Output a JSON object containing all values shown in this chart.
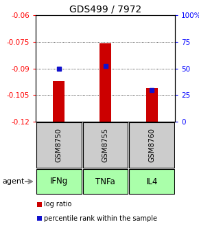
{
  "title": "GDS499 / 7972",
  "categories": [
    "IFNg",
    "TNFa",
    "IL4"
  ],
  "sample_labels": [
    "GSM8750",
    "GSM8755",
    "GSM8760"
  ],
  "log_ratios": [
    -0.097,
    -0.076,
    -0.101
  ],
  "percentile_ranks": [
    50,
    52,
    30
  ],
  "ylim_left": [
    -0.12,
    -0.06
  ],
  "ylim_right": [
    0,
    100
  ],
  "yticks_left": [
    -0.12,
    -0.105,
    -0.09,
    -0.075,
    -0.06
  ],
  "yticks_right": [
    0,
    25,
    50,
    75,
    100
  ],
  "bar_color": "#cc0000",
  "percentile_color": "#1111cc",
  "sample_box_color": "#cccccc",
  "agent_box_color": "#aaffaa",
  "legend_log_ratio": "log ratio",
  "legend_percentile": "percentile rank within the sample",
  "agent_label": "agent"
}
